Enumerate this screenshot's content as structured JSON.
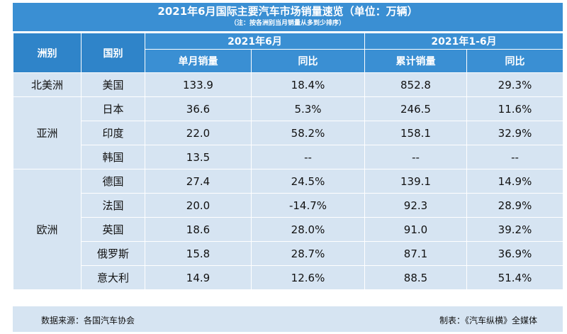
{
  "title": "2021年6月国际主要汽车市场销量速览（单位：万辆）",
  "note": "（注：按各洲别当月销量从多到少排序）",
  "headers": {
    "region": "洲别",
    "country": "国别",
    "period_month": "2021年6月",
    "period_ytd": "2021年1-6月",
    "monthly_sales": "单月销量",
    "yoy_month": "同比",
    "cumulative_sales": "累计销量",
    "yoy_ytd": "同比"
  },
  "regions": {
    "north_america": "北美洲",
    "asia": "亚洲",
    "europe": "欧洲"
  },
  "rows": [
    {
      "country": "美国",
      "month": "133.9",
      "month_yoy": "18.4%",
      "ytd": "852.8",
      "ytd_yoy": "29.3%"
    },
    {
      "country": "日本",
      "month": "36.6",
      "month_yoy": "5.3%",
      "ytd": "246.5",
      "ytd_yoy": "11.6%"
    },
    {
      "country": "印度",
      "month": "22.0",
      "month_yoy": "58.2%",
      "ytd": "158.1",
      "ytd_yoy": "32.9%"
    },
    {
      "country": "韩国",
      "month": "13.5",
      "month_yoy": "--",
      "ytd": "--",
      "ytd_yoy": "--"
    },
    {
      "country": "德国",
      "month": "27.4",
      "month_yoy": "24.5%",
      "ytd": "139.1",
      "ytd_yoy": "14.9%"
    },
    {
      "country": "法国",
      "month": "20.0",
      "month_yoy": "-14.7%",
      "ytd": "92.3",
      "ytd_yoy": "28.9%"
    },
    {
      "country": "英国",
      "month": "18.6",
      "month_yoy": "28.0%",
      "ytd": "91.0",
      "ytd_yoy": "39.2%"
    },
    {
      "country": "俄罗斯",
      "month": "15.8",
      "month_yoy": "28.7%",
      "ytd": "87.1",
      "ytd_yoy": "36.9%"
    },
    {
      "country": "意大利",
      "month": "14.9",
      "month_yoy": "12.6%",
      "ytd": "88.5",
      "ytd_yoy": "51.4%"
    }
  ],
  "footer": {
    "source": "数据来源：各国汽车协会",
    "made_by": "制表：《汽车纵横》全媒体"
  },
  "colors": {
    "header_blue": "#3a8fd3",
    "row_light": "#d6e4f2"
  }
}
